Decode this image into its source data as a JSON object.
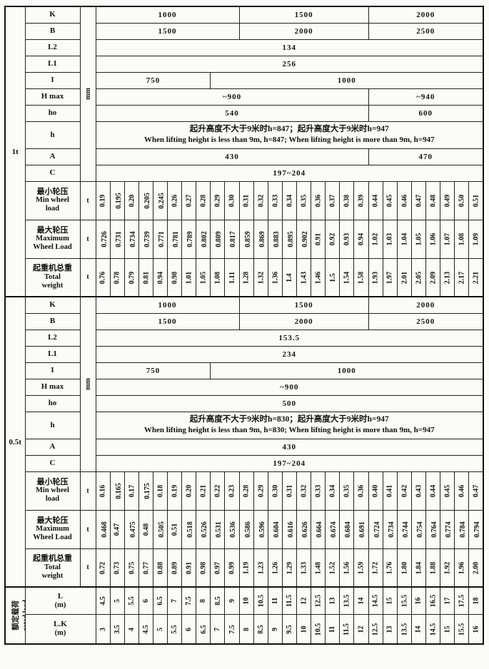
{
  "units": {
    "mm": "mm",
    "t": "t"
  },
  "params": {
    "K": "K",
    "B": "B",
    "L2": "L2",
    "L1": "L1",
    "I": "I",
    "Hmax": "H max",
    "ho": "ho",
    "h": "h",
    "A": "A",
    "C": "C"
  },
  "s1": {
    "label": "1t",
    "K": [
      "1000",
      "1500",
      "2000"
    ],
    "B": [
      "1500",
      "2000",
      "2500"
    ],
    "L2": "134",
    "L1": "256",
    "I": [
      "750",
      "1000"
    ],
    "Hmax": [
      "~900",
      "~940"
    ],
    "ho": [
      "540",
      "600"
    ],
    "h_cn": "起升高度不大于9米时h=847；起升高度大于9米时h=947",
    "h_en": "When lifting height is less than 9m, h=847; When lifting height is more than 9m, h=947",
    "A": [
      "430",
      "470"
    ],
    "C": "197~204",
    "min_wheel": {
      "cn": "最小轮压",
      "en1": "Min wheel",
      "en2": "load",
      "values": [
        "0.19",
        "0.195",
        "0.20",
        "0.205",
        "0.245",
        "0.26",
        "0.27",
        "0.28",
        "0.29",
        "0.30",
        "0.31",
        "0.32",
        "0.33",
        "0.34",
        "0.35",
        "0.36",
        "0.37",
        "0.38",
        "0.39",
        "0.44",
        "0.45",
        "0.46",
        "0.47",
        "0.48",
        "0.49",
        "0.50",
        "0.51"
      ]
    },
    "max_wheel": {
      "cn": "最大轮压",
      "en1": "Maximum",
      "en2": "Wheel Load",
      "values": [
        "0.726",
        "0.731",
        "0.734",
        "0.739",
        "0.771",
        "0.781",
        "0.789",
        "0.802",
        "0.809",
        "0.817",
        "0.859",
        "0.869",
        "0.883",
        "0.895",
        "0.902",
        "0.91",
        "0.92",
        "0.93",
        "0.94",
        "1.02",
        "1.03",
        "1.04",
        "1.05",
        "1.06",
        "1.07",
        "1.08",
        "1.09"
      ]
    },
    "total_weight": {
      "cn": "起重机总重",
      "en1": "Total",
      "en2": "weight",
      "values": [
        "0.76",
        "0.78",
        "0.79",
        "0.81",
        "0.94",
        "0.98",
        "1.01",
        "1.05",
        "1.08",
        "1.11",
        "1.28",
        "1.32",
        "1.36",
        "1.4",
        "1.43",
        "1.46",
        "1.5",
        "1.54",
        "1.58",
        "1.93",
        "1.97",
        "2.01",
        "2.05",
        "2.09",
        "2.13",
        "2.17",
        "2.21"
      ]
    }
  },
  "s2": {
    "label": "0.5t",
    "K": [
      "1000",
      "1500",
      "2000"
    ],
    "B": [
      "1500",
      "2000",
      "2500"
    ],
    "L2": "153.5",
    "L1": "234",
    "I": [
      "750",
      "1000"
    ],
    "Hmax": "~900",
    "ho": "500",
    "h_cn": "起升高度不大于9米时h=830；起升高度大于9米时h=947",
    "h_en": "When lifting height is less than 9m, h=830; When lifting height is more than 9m, h=947",
    "A": "430",
    "C": "197~204",
    "min_wheel": {
      "cn": "最小轮压",
      "en1": "Min wheel",
      "en2": "load",
      "values": [
        "0.16",
        "0.165",
        "0.17",
        "0.175",
        "0.18",
        "0.19",
        "0.20",
        "0.21",
        "0.22",
        "0.23",
        "0.28",
        "0.29",
        "0.30",
        "0.31",
        "0.32",
        "0.33",
        "0.34",
        "0.35",
        "0.36",
        "0.40",
        "0.41",
        "0.42",
        "0.43",
        "0.44",
        "0.45",
        "0.46",
        "0.47"
      ]
    },
    "max_wheel": {
      "cn": "最大轮压",
      "en1": "Maximum",
      "en2": "Wheel Load",
      "values": [
        "0.468",
        "0.47",
        "0.475",
        "0.48",
        "0.505",
        "0.51",
        "0.518",
        "0.526",
        "0.531",
        "0.536",
        "0.586",
        "0.596",
        "0.604",
        "0.616",
        "0.626",
        "0.664",
        "0.674",
        "0.684",
        "0.691",
        "0.724",
        "0.734",
        "0.744",
        "0.754",
        "0.764",
        "0.774",
        "0.784",
        "0.794"
      ]
    },
    "total_weight": {
      "cn": "起重机总重",
      "en1": "Total",
      "en2": "weight",
      "values": [
        "0.72",
        "0.73",
        "0.75",
        "0.77",
        "0.88",
        "0.89",
        "0.91",
        "0.98",
        "0.97",
        "0.99",
        "1.19",
        "1.23",
        "1.26",
        "1.29",
        "1.33",
        "1.48",
        "1.52",
        "1.56",
        "1.59",
        "1.72",
        "1.76",
        "1.80",
        "1.84",
        "1.88",
        "1.92",
        "1.96",
        "2.00"
      ]
    }
  },
  "bottom": {
    "section_cn": "额定载荷",
    "section_en": "rated load",
    "L": {
      "label": "L",
      "unit": "(m)",
      "values": [
        "4.5",
        "5",
        "5.5",
        "6",
        "6.5",
        "7",
        "7.5",
        "8",
        "8.5",
        "9",
        "10",
        "10.5",
        "11",
        "11.5",
        "12",
        "12.5",
        "13",
        "13.5",
        "14",
        "14.5",
        "15",
        "15.5",
        "16",
        "16.5",
        "17",
        "17.5",
        "18"
      ]
    },
    "LK": {
      "label": "L.K",
      "unit": "(m)",
      "values": [
        "3",
        "3.5",
        "4",
        "4.5",
        "5",
        "5.5",
        "6",
        "6.5",
        "7",
        "7.5",
        "8",
        "8.5",
        "9",
        "9.5",
        "10",
        "10.5",
        "11",
        "11.5",
        "12",
        "12.5",
        "13",
        "13.5",
        "14",
        "14.5",
        "15",
        "15.5",
        "16"
      ]
    }
  }
}
